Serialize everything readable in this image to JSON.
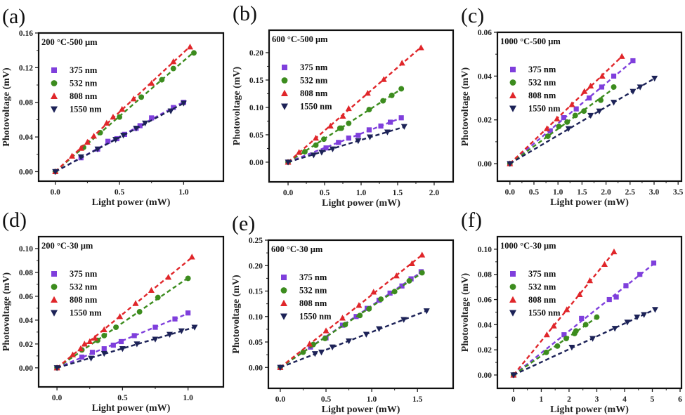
{
  "legend_names": [
    "375 nm",
    "532 nm",
    "808 nm",
    "1550 nm"
  ],
  "series_colors": [
    "#7f3fdc",
    "#3c8c1e",
    "#e0262a",
    "#1c2257"
  ],
  "series_markers": [
    "square",
    "circle",
    "triangle-up",
    "triangle-down"
  ],
  "chart_data": [
    {
      "type": "scatter",
      "panel_label": "(a)",
      "title": "200 °C-500 µm",
      "xlabel": "Light power (mW)",
      "ylabel": "Photovoltage (mV)",
      "xlim": [
        -0.13,
        1.31
      ],
      "ylim": [
        -0.011,
        0.16
      ],
      "xticks": [
        "0.0",
        "0.5",
        "1.0"
      ],
      "yticks": [
        "0.00",
        "0.04",
        "0.08",
        "0.12",
        "0.16"
      ],
      "fit_lines": "dashed",
      "legend": "left",
      "series": [
        {
          "name": "375 nm",
          "x": [
            0,
            0.2,
            0.33,
            0.41,
            0.48,
            0.54,
            0.63,
            0.66,
            0.75,
            0.92,
            1.0
          ],
          "y": [
            0,
            0.016,
            0.026,
            0.035,
            0.038,
            0.043,
            0.05,
            0.053,
            0.062,
            0.074,
            0.08
          ]
        },
        {
          "name": "532 nm",
          "x": [
            0,
            0.22,
            0.35,
            0.5,
            0.67,
            0.83,
            0.92,
            1.08
          ],
          "y": [
            0,
            0.028,
            0.045,
            0.063,
            0.086,
            0.106,
            0.119,
            0.137
          ]
        },
        {
          "name": "808 nm",
          "x": [
            0,
            0.13,
            0.2,
            0.25,
            0.3,
            0.4,
            0.45,
            0.52,
            0.61,
            0.75,
            0.92,
            1.05
          ],
          "y": [
            0,
            0.018,
            0.027,
            0.034,
            0.041,
            0.056,
            0.063,
            0.072,
            0.084,
            0.102,
            0.127,
            0.144
          ]
        },
        {
          "name": "1550 nm",
          "x": [
            0,
            0.2,
            0.33,
            0.47,
            0.53,
            0.63,
            0.7,
            0.9,
            1.0
          ],
          "y": [
            0,
            0.017,
            0.026,
            0.037,
            0.042,
            0.05,
            0.056,
            0.07,
            0.079
          ]
        }
      ]
    },
    {
      "type": "scatter",
      "panel_label": "(b)",
      "title": "600 °C-500 µm",
      "xlabel": "Light power (mW)",
      "ylabel": "Photovoltage (mV)",
      "xlim": [
        -0.26,
        2.26
      ],
      "ylim": [
        -0.036,
        0.241
      ],
      "xticks": [
        "0.0",
        "0.5",
        "1.0",
        "1.5",
        "2.0"
      ],
      "yticks": [
        "0.00",
        "0.05",
        "0.10",
        "0.15",
        "0.20"
      ],
      "fit_lines": "dashed",
      "legend": "left",
      "series": [
        {
          "name": "375 nm",
          "x": [
            0,
            0.52,
            0.69,
            0.83,
            0.96,
            1.11,
            1.27,
            1.4,
            1.55
          ],
          "y": [
            0,
            0.026,
            0.036,
            0.044,
            0.049,
            0.059,
            0.066,
            0.073,
            0.081
          ]
        },
        {
          "name": "532 nm",
          "x": [
            0,
            0.23,
            0.38,
            0.49,
            0.71,
            0.73,
            0.83,
            1.11,
            1.3,
            1.42,
            1.55
          ],
          "y": [
            0,
            0.019,
            0.031,
            0.042,
            0.062,
            0.062,
            0.071,
            0.096,
            0.112,
            0.122,
            0.134
          ]
        },
        {
          "name": "808 nm",
          "x": [
            0,
            0.15,
            0.38,
            0.58,
            0.75,
            0.83,
            1.09,
            1.31,
            1.56,
            1.82
          ],
          "y": [
            0,
            0.018,
            0.044,
            0.066,
            0.084,
            0.098,
            0.126,
            0.151,
            0.181,
            0.209
          ]
        },
        {
          "name": "1550 nm",
          "x": [
            0,
            0.35,
            0.46,
            0.61,
            0.96,
            1.12,
            1.36,
            1.59
          ],
          "y": [
            0,
            0.013,
            0.018,
            0.024,
            0.039,
            0.046,
            0.055,
            0.065
          ]
        }
      ]
    },
    {
      "type": "scatter",
      "panel_label": "(c)",
      "title": "1000 °C-500 µm",
      "xlabel": "Light power (mW)",
      "ylabel": "Photovoltage (mV)",
      "xlim": [
        -0.26,
        3.57
      ],
      "ylim": [
        -0.008,
        0.06
      ],
      "xticks": [
        "0.0",
        "0.5",
        "1.0",
        "1.5",
        "2.0",
        "2.5",
        "3.0",
        "3.5"
      ],
      "yticks": [
        "0.00",
        "0.02",
        "0.04",
        "0.06"
      ],
      "fit_lines": "dashed",
      "legend": "left",
      "series": [
        {
          "name": "375 nm",
          "x": [
            0,
            0.84,
            1.12,
            1.38,
            1.65,
            1.91,
            2.16,
            2.56
          ],
          "y": [
            0,
            0.015,
            0.021,
            0.025,
            0.03,
            0.035,
            0.04,
            0.047
          ]
        },
        {
          "name": "532 nm",
          "x": [
            0,
            0.79,
            1.02,
            1.19,
            1.36,
            1.54,
            1.89,
            2.16
          ],
          "y": [
            0,
            0.0125,
            0.017,
            0.019,
            0.022,
            0.024,
            0.029,
            0.035
          ]
        },
        {
          "name": "808 nm",
          "x": [
            0,
            0.77,
            0.98,
            1.29,
            1.55,
            1.68,
            1.92,
            2.33
          ],
          "y": [
            0,
            0.016,
            0.0205,
            0.027,
            0.033,
            0.0355,
            0.04,
            0.049
          ]
        },
        {
          "name": "1550 nm",
          "x": [
            0,
            1.22,
            1.68,
            1.86,
            2.16,
            2.56,
            2.71,
            3.01
          ],
          "y": [
            0,
            0.016,
            0.022,
            0.024,
            0.028,
            0.033,
            0.035,
            0.039
          ]
        }
      ]
    },
    {
      "type": "scatter",
      "panel_label": "(d)",
      "title": "200 °C-30 µm",
      "xlabel": "Light power (mW)",
      "ylabel": "Photovoltage (mV)",
      "xlim": [
        -0.14,
        1.27
      ],
      "ylim": [
        -0.016,
        0.11
      ],
      "xticks": [
        "0.0",
        "0.5",
        "1.0"
      ],
      "yticks": [
        "0.00",
        "0.02",
        "0.04",
        "0.06",
        "0.08",
        "0.10"
      ],
      "fit_lines": "dashed",
      "legend": "left",
      "series": [
        {
          "name": "375 nm",
          "x": [
            0,
            0.19,
            0.27,
            0.36,
            0.43,
            0.49,
            0.59,
            0.75,
            0.9,
            1.0
          ],
          "y": [
            0,
            0.009,
            0.013,
            0.016,
            0.019,
            0.022,
            0.027,
            0.034,
            0.041,
            0.046
          ]
        },
        {
          "name": "532 nm",
          "x": [
            0,
            0.19,
            0.31,
            0.36,
            0.45,
            0.63,
            0.77,
            1.0
          ],
          "y": [
            0,
            0.015,
            0.023,
            0.027,
            0.034,
            0.047,
            0.059,
            0.075
          ]
        },
        {
          "name": "808 nm",
          "x": [
            0,
            0.12,
            0.18,
            0.21,
            0.25,
            0.29,
            0.36,
            0.48,
            0.6,
            0.72,
            0.85,
            1.03
          ],
          "y": [
            0,
            0.011,
            0.016,
            0.02,
            0.022,
            0.025,
            0.032,
            0.043,
            0.054,
            0.065,
            0.076,
            0.093
          ]
        },
        {
          "name": "1550 nm",
          "x": [
            0,
            0.26,
            0.36,
            0.5,
            0.61,
            0.75,
            0.86,
            0.95,
            1.05
          ],
          "y": [
            0,
            0.008,
            0.012,
            0.016,
            0.02,
            0.024,
            0.028,
            0.031,
            0.034
          ]
        }
      ]
    },
    {
      "type": "scatter",
      "panel_label": "(e)",
      "title": "600 °C-30 µm",
      "xlabel": "Light power (mW)",
      "ylabel": "Photovoltage (mV)",
      "xlim": [
        -0.13,
        1.89
      ],
      "ylim": [
        -0.041,
        0.25
      ],
      "xticks": [
        "0.0",
        "0.5",
        "1.0",
        "1.5"
      ],
      "yticks": [
        "0.00",
        "0.05",
        "0.10",
        "0.15",
        "0.20",
        "0.25"
      ],
      "fit_lines": "dashed",
      "legend": "left",
      "series": [
        {
          "name": "375 nm",
          "x": [
            0,
            0.33,
            0.5,
            0.68,
            0.83,
            0.95,
            1.08,
            1.2,
            1.33,
            1.43,
            1.54
          ],
          "y": [
            0,
            0.04,
            0.058,
            0.083,
            0.1,
            0.116,
            0.132,
            0.146,
            0.16,
            0.174,
            0.188
          ]
        },
        {
          "name": "532 nm",
          "x": [
            0,
            0.25,
            0.36,
            0.49,
            0.71,
            0.87,
            0.97,
            1.1,
            1.25,
            1.41,
            1.55
          ],
          "y": [
            0,
            0.03,
            0.045,
            0.057,
            0.084,
            0.102,
            0.115,
            0.134,
            0.149,
            0.17,
            0.186
          ]
        },
        {
          "name": "808 nm",
          "x": [
            0,
            0.32,
            0.5,
            0.68,
            0.86,
            1.02,
            1.27,
            1.44,
            1.55
          ],
          "y": [
            0,
            0.046,
            0.072,
            0.097,
            0.122,
            0.148,
            0.18,
            0.204,
            0.221
          ]
        },
        {
          "name": "1550 nm",
          "x": [
            0,
            0.38,
            0.45,
            0.57,
            0.75,
            0.94,
            1.08,
            1.35,
            1.6
          ],
          "y": [
            0,
            0.027,
            0.03,
            0.04,
            0.052,
            0.065,
            0.076,
            0.094,
            0.111
          ]
        }
      ]
    },
    {
      "type": "scatter",
      "panel_label": "(f)",
      "title": "1000 °C-30 µm",
      "xlabel": "Light power (mW)",
      "ylabel": "Photovoltage (mV)",
      "xlim": [
        -0.58,
        6.05
      ],
      "ylim": [
        -0.0106,
        0.11
      ],
      "xticks": [
        "0",
        "1",
        "2",
        "3",
        "4",
        "5",
        "6"
      ],
      "yticks": [
        "0.00",
        "0.02",
        "0.04",
        "0.06",
        "0.08",
        "0.10"
      ],
      "fit_lines": "dashed",
      "legend": "left",
      "series": [
        {
          "name": "375 nm",
          "x": [
            0,
            1.82,
            2.45,
            3.45,
            3.7,
            4.05,
            4.55,
            5.05
          ],
          "y": [
            0,
            0.032,
            0.045,
            0.06,
            0.062,
            0.071,
            0.08,
            0.089
          ]
        },
        {
          "name": "532 nm",
          "x": [
            0,
            1.18,
            1.58,
            1.9,
            2.2,
            2.25,
            2.6,
            3.0
          ],
          "y": [
            0,
            0.018,
            0.023,
            0.029,
            0.033,
            0.035,
            0.04,
            0.046
          ]
        },
        {
          "name": "808 nm",
          "x": [
            0,
            1.2,
            1.45,
            1.92,
            2.38,
            2.75,
            3.28,
            3.62
          ],
          "y": [
            0,
            0.032,
            0.039,
            0.052,
            0.064,
            0.075,
            0.088,
            0.098
          ]
        },
        {
          "name": "1550 nm",
          "x": [
            0,
            2.1,
            2.85,
            3.65,
            4.1,
            4.45,
            4.7,
            5.1
          ],
          "y": [
            0,
            0.022,
            0.029,
            0.037,
            0.042,
            0.046,
            0.048,
            0.052
          ]
        }
      ]
    }
  ]
}
